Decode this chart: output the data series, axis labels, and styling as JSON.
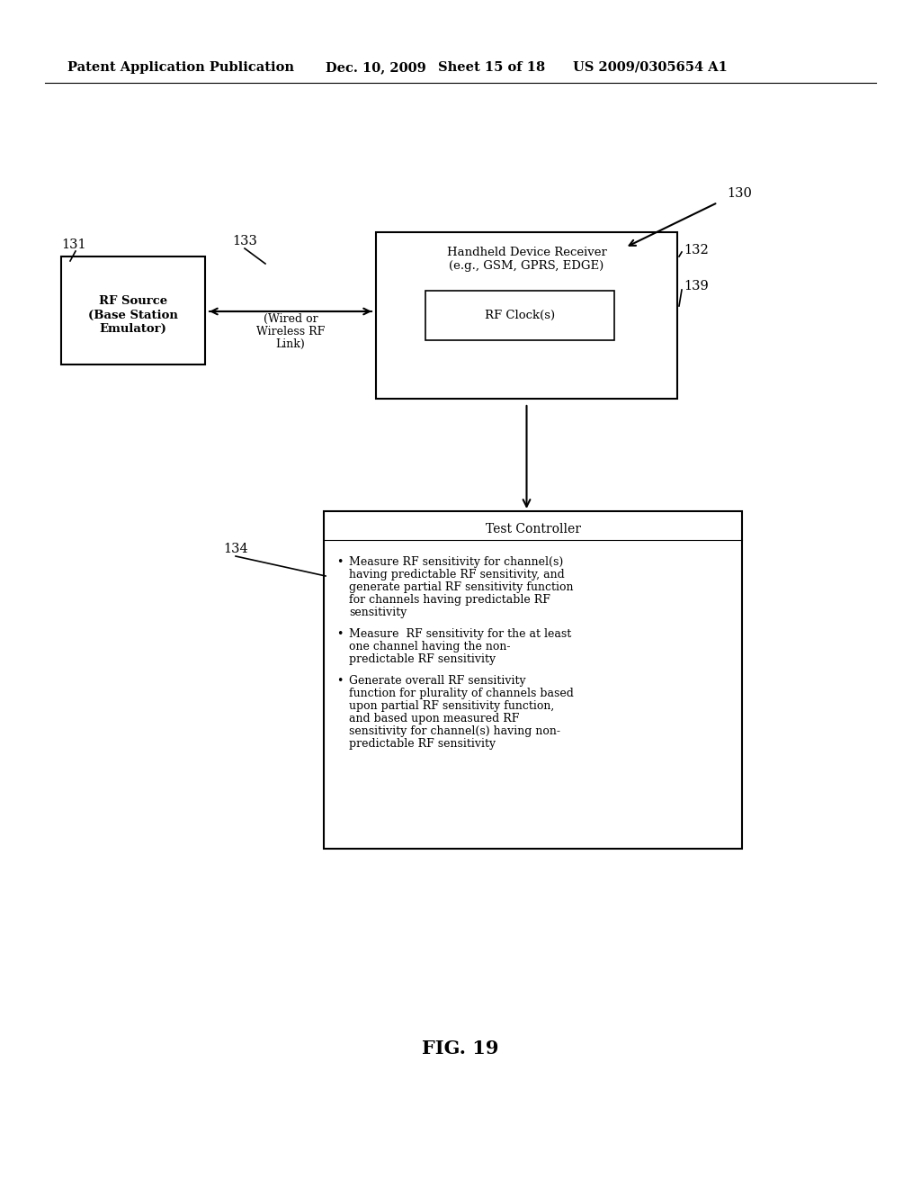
{
  "bg_color": "#ffffff",
  "header_text": "Patent Application Publication",
  "header_date": "Dec. 10, 2009",
  "header_sheet": "Sheet 15 of 18",
  "header_patent": "US 2009/0305654 A1",
  "fig_label": "FIG. 19",
  "label_130": "130",
  "label_131": "131",
  "label_132": "132",
  "label_133": "133",
  "label_134": "134",
  "label_139": "139",
  "box_rf_source_line1": "RF Source",
  "box_rf_source_line2": "(Base Station",
  "box_rf_source_line3": "Emulator)",
  "box_handheld_line1": "Handheld Device Receiver",
  "box_handheld_line2": "(e.g., GSM, GPRS, EDGE)",
  "box_rf_clock": "RF Clock(s)",
  "box_test_controller_title": "Test Controller",
  "bullet1_line1": "Measure RF sensitivity for channel(s)",
  "bullet1_line2": "having predictable RF sensitivity, and",
  "bullet1_line3": "generate partial RF sensitivity function",
  "bullet1_line4": "for channels having predictable RF",
  "bullet1_line5": "sensitivity",
  "bullet2_line1": "Measure  RF sensitivity for the at least",
  "bullet2_line2": "one channel having the non-",
  "bullet2_line3": "predictable RF sensitivity",
  "bullet3_line1": "Generate overall RF sensitivity",
  "bullet3_line2": "function for plurality of channels based",
  "bullet3_line3": "upon partial RF sensitivity function,",
  "bullet3_line4": "and based upon measured RF",
  "bullet3_line5": "sensitivity for channel(s) having non-",
  "bullet3_line6": "predictable RF sensitivity",
  "wired_line1": "(Wired or",
  "wired_line2": "Wireless RF",
  "wired_line3": "Link)"
}
